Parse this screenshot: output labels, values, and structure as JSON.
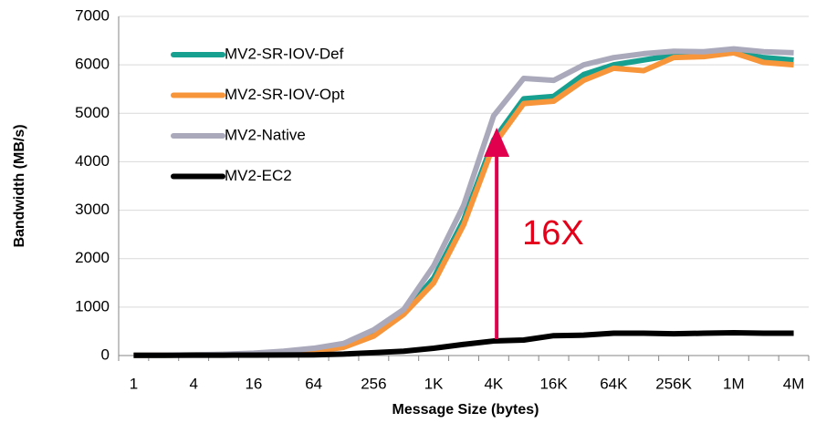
{
  "chart_data": {
    "type": "line",
    "x_label": "Message Size (bytes)",
    "y_label": "Bandwidth (MB/s)",
    "annotation": "16X",
    "categories": [
      "1",
      null,
      "4",
      null,
      "16",
      null,
      "64",
      null,
      "256",
      null,
      "1K",
      null,
      "4K",
      null,
      "16K",
      null,
      "64K",
      null,
      "256K",
      null,
      "1M",
      null,
      "4M"
    ],
    "series": [
      {
        "name": "MV2-SR-IOV-Def",
        "color": "#17a08f",
        "values": [
          5,
          8,
          12,
          20,
          35,
          55,
          90,
          180,
          420,
          880,
          1600,
          2800,
          4450,
          5300,
          5350,
          5800,
          6000,
          6100,
          6200,
          6200,
          6250,
          6150,
          6100
        ]
      },
      {
        "name": "MV2-SR-IOV-Opt",
        "color": "#f7953b",
        "values": [
          5,
          8,
          12,
          20,
          35,
          55,
          90,
          170,
          400,
          850,
          1500,
          2700,
          4350,
          5200,
          5250,
          5680,
          5930,
          5880,
          6150,
          6170,
          6250,
          6050,
          6000
        ]
      },
      {
        "name": "MV2-Native",
        "color": "#a9a9bb",
        "values": [
          5,
          8,
          15,
          25,
          50,
          90,
          150,
          250,
          530,
          950,
          1850,
          3100,
          4950,
          5720,
          5680,
          6000,
          6150,
          6230,
          6280,
          6270,
          6330,
          6270,
          6250
        ]
      },
      {
        "name": "MV2-EC2",
        "color": "#000000",
        "values": [
          5,
          5,
          6,
          8,
          10,
          12,
          15,
          30,
          60,
          90,
          150,
          230,
          300,
          320,
          410,
          420,
          460,
          460,
          450,
          460,
          470,
          460,
          460
        ]
      }
    ],
    "ylim": [
      0,
      7000
    ],
    "yticks": [
      0,
      1000,
      2000,
      3000,
      4000,
      5000,
      6000,
      7000
    ],
    "grid": true,
    "legend": "top-left"
  }
}
